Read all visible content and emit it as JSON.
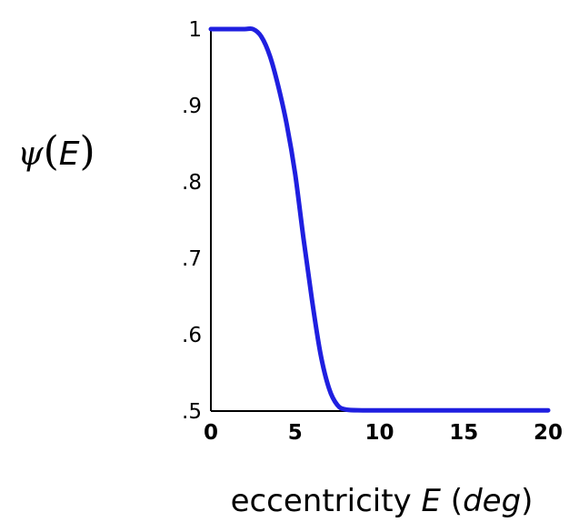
{
  "chart_data": {
    "type": "line",
    "title": "",
    "xlabel": {
      "prefix": "eccentricity ",
      "var": "E",
      "open": " (",
      "unit": "deg",
      "close": ")"
    },
    "ylabel": {
      "func": "ψ",
      "open": "(",
      "var": "E",
      "close": ")"
    },
    "xlim": [
      0,
      20
    ],
    "ylim": [
      0.5,
      1.0
    ],
    "xticks": [
      {
        "value": 0,
        "label": "0"
      },
      {
        "value": 5,
        "label": "5"
      },
      {
        "value": 10,
        "label": "10"
      },
      {
        "value": 15,
        "label": "15"
      },
      {
        "value": 20,
        "label": "20"
      }
    ],
    "yticks": [
      {
        "value": 0.5,
        "label": ".5"
      },
      {
        "value": 0.6,
        "label": ".6"
      },
      {
        "value": 0.7,
        "label": ".7"
      },
      {
        "value": 0.8,
        "label": ".8"
      },
      {
        "value": 0.9,
        "label": ".9"
      },
      {
        "value": 1.0,
        "label": "1"
      }
    ],
    "grid": false,
    "line_color": "#1f1fe0",
    "series": [
      {
        "x": [
          0,
          1,
          2,
          2.5,
          3,
          3.5,
          4,
          4.5,
          5,
          5.5,
          6,
          6.5,
          7,
          7.5,
          8,
          9,
          10,
          12,
          15,
          18,
          20
        ],
        "y": [
          1.0,
          1.0,
          1.0,
          1.0,
          0.99,
          0.965,
          0.925,
          0.875,
          0.81,
          0.725,
          0.645,
          0.575,
          0.53,
          0.508,
          0.502,
          0.501,
          0.501,
          0.501,
          0.501,
          0.501,
          0.501
        ]
      }
    ]
  }
}
